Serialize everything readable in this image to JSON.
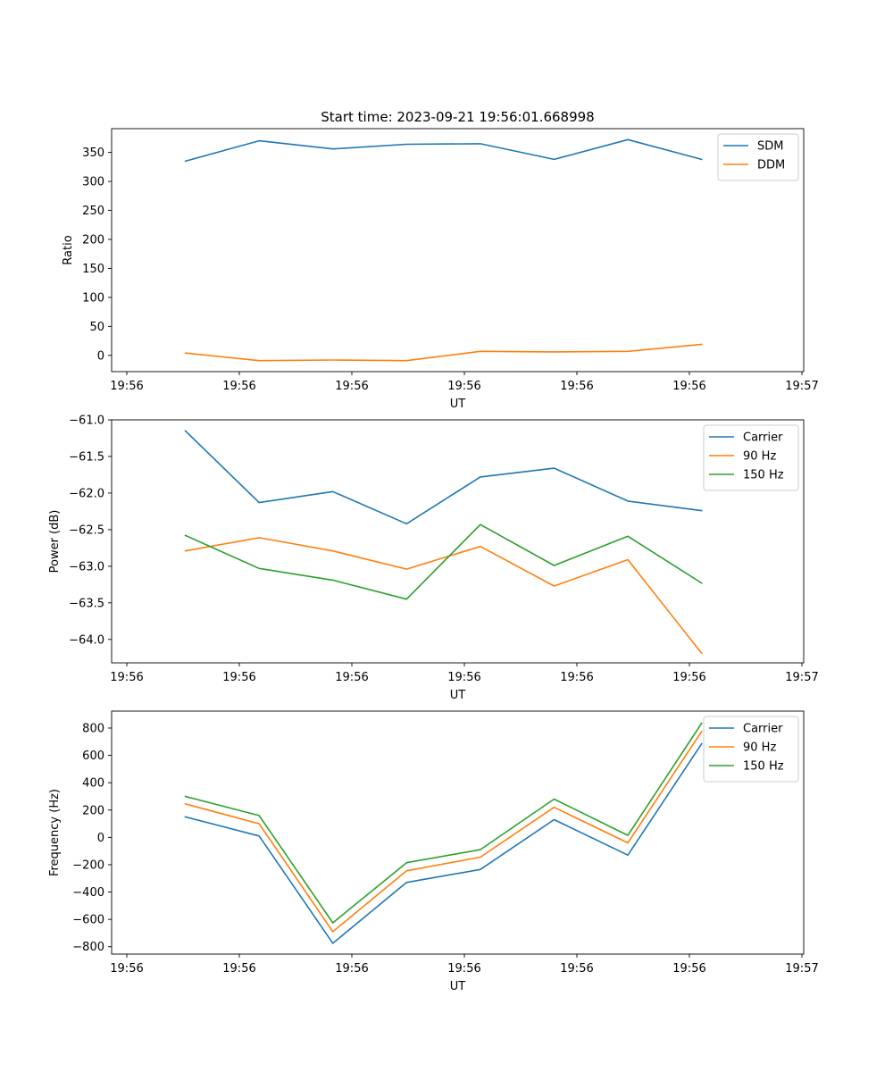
{
  "chart_data": [
    {
      "type": "line",
      "title": "Start time: 2023-09-21 19:56:01.668998",
      "xlabel": "UT",
      "ylabel": "Ratio",
      "xticks": [
        "19:56",
        "19:56",
        "19:56",
        "19:56",
        "19:56",
        "19:56",
        "19:57"
      ],
      "x": [
        0.5,
        1.15,
        1.8,
        2.45,
        3.1,
        3.75,
        4.4,
        5.05
      ],
      "xlim": [
        -0.15,
        5.95
      ],
      "ylim": [
        -28,
        391
      ],
      "yticks": [
        0,
        50,
        100,
        150,
        200,
        250,
        300,
        350
      ],
      "legend_loc": "top-right",
      "series": [
        {
          "name": "SDM",
          "color": "#1f77b4",
          "values": [
            335,
            370,
            356,
            364,
            365,
            338,
            372,
            338
          ]
        },
        {
          "name": "DDM",
          "color": "#ff7f0e",
          "values": [
            4,
            -9,
            -8,
            -9,
            7,
            6,
            7,
            19
          ]
        }
      ]
    },
    {
      "type": "line",
      "title": "",
      "xlabel": "UT",
      "ylabel": "Power (dB)",
      "xticks": [
        "19:56",
        "19:56",
        "19:56",
        "19:56",
        "19:56",
        "19:56",
        "19:57"
      ],
      "x": [
        0.5,
        1.15,
        1.8,
        2.45,
        3.1,
        3.75,
        4.4,
        5.05
      ],
      "xlim": [
        -0.15,
        5.95
      ],
      "ylim": [
        -64.32,
        -61.0
      ],
      "yticks": [
        -61.0,
        -61.5,
        -62.0,
        -62.5,
        -63.0,
        -63.5,
        -64.0
      ],
      "ytick_labels": [
        "−61.0",
        "−61.5",
        "−62.0",
        "−62.5",
        "−63.0",
        "−63.5",
        "−64.0"
      ],
      "legend_loc": "top-right",
      "series": [
        {
          "name": "Carrier",
          "color": "#1f77b4",
          "values": [
            -61.15,
            -62.13,
            -61.98,
            -62.42,
            -61.78,
            -61.66,
            -62.11,
            -62.24
          ]
        },
        {
          "name": "90 Hz",
          "color": "#ff7f0e",
          "values": [
            -62.79,
            -62.61,
            -62.79,
            -63.04,
            -62.73,
            -63.27,
            -62.91,
            -64.19
          ]
        },
        {
          "name": "150 Hz",
          "color": "#2ca02c",
          "values": [
            -62.58,
            -63.03,
            -63.19,
            -63.45,
            -62.43,
            -62.99,
            -62.59,
            -63.23
          ]
        }
      ]
    },
    {
      "type": "line",
      "title": "",
      "xlabel": "UT",
      "ylabel": "Frequency (Hz)",
      "xticks": [
        "19:56",
        "19:56",
        "19:56",
        "19:56",
        "19:56",
        "19:56",
        "19:57"
      ],
      "x": [
        0.5,
        1.15,
        1.8,
        2.45,
        3.1,
        3.75,
        4.4,
        5.05
      ],
      "xlim": [
        -0.15,
        5.95
      ],
      "ylim": [
        -854,
        924
      ],
      "yticks": [
        -800,
        -600,
        -400,
        -200,
        0,
        200,
        400,
        600,
        800
      ],
      "ytick_labels": [
        "−800",
        "−600",
        "−400",
        "−200",
        "0",
        "200",
        "400",
        "600",
        "800"
      ],
      "legend_loc": "top-right",
      "series": [
        {
          "name": "Carrier",
          "color": "#1f77b4",
          "values": [
            150,
            10,
            -775,
            -330,
            -235,
            130,
            -130,
            685
          ]
        },
        {
          "name": "90 Hz",
          "color": "#ff7f0e",
          "values": [
            245,
            100,
            -690,
            -245,
            -145,
            220,
            -40,
            775
          ]
        },
        {
          "name": "150 Hz",
          "color": "#2ca02c",
          "values": [
            300,
            160,
            -625,
            -185,
            -90,
            280,
            15,
            835
          ]
        }
      ]
    }
  ]
}
